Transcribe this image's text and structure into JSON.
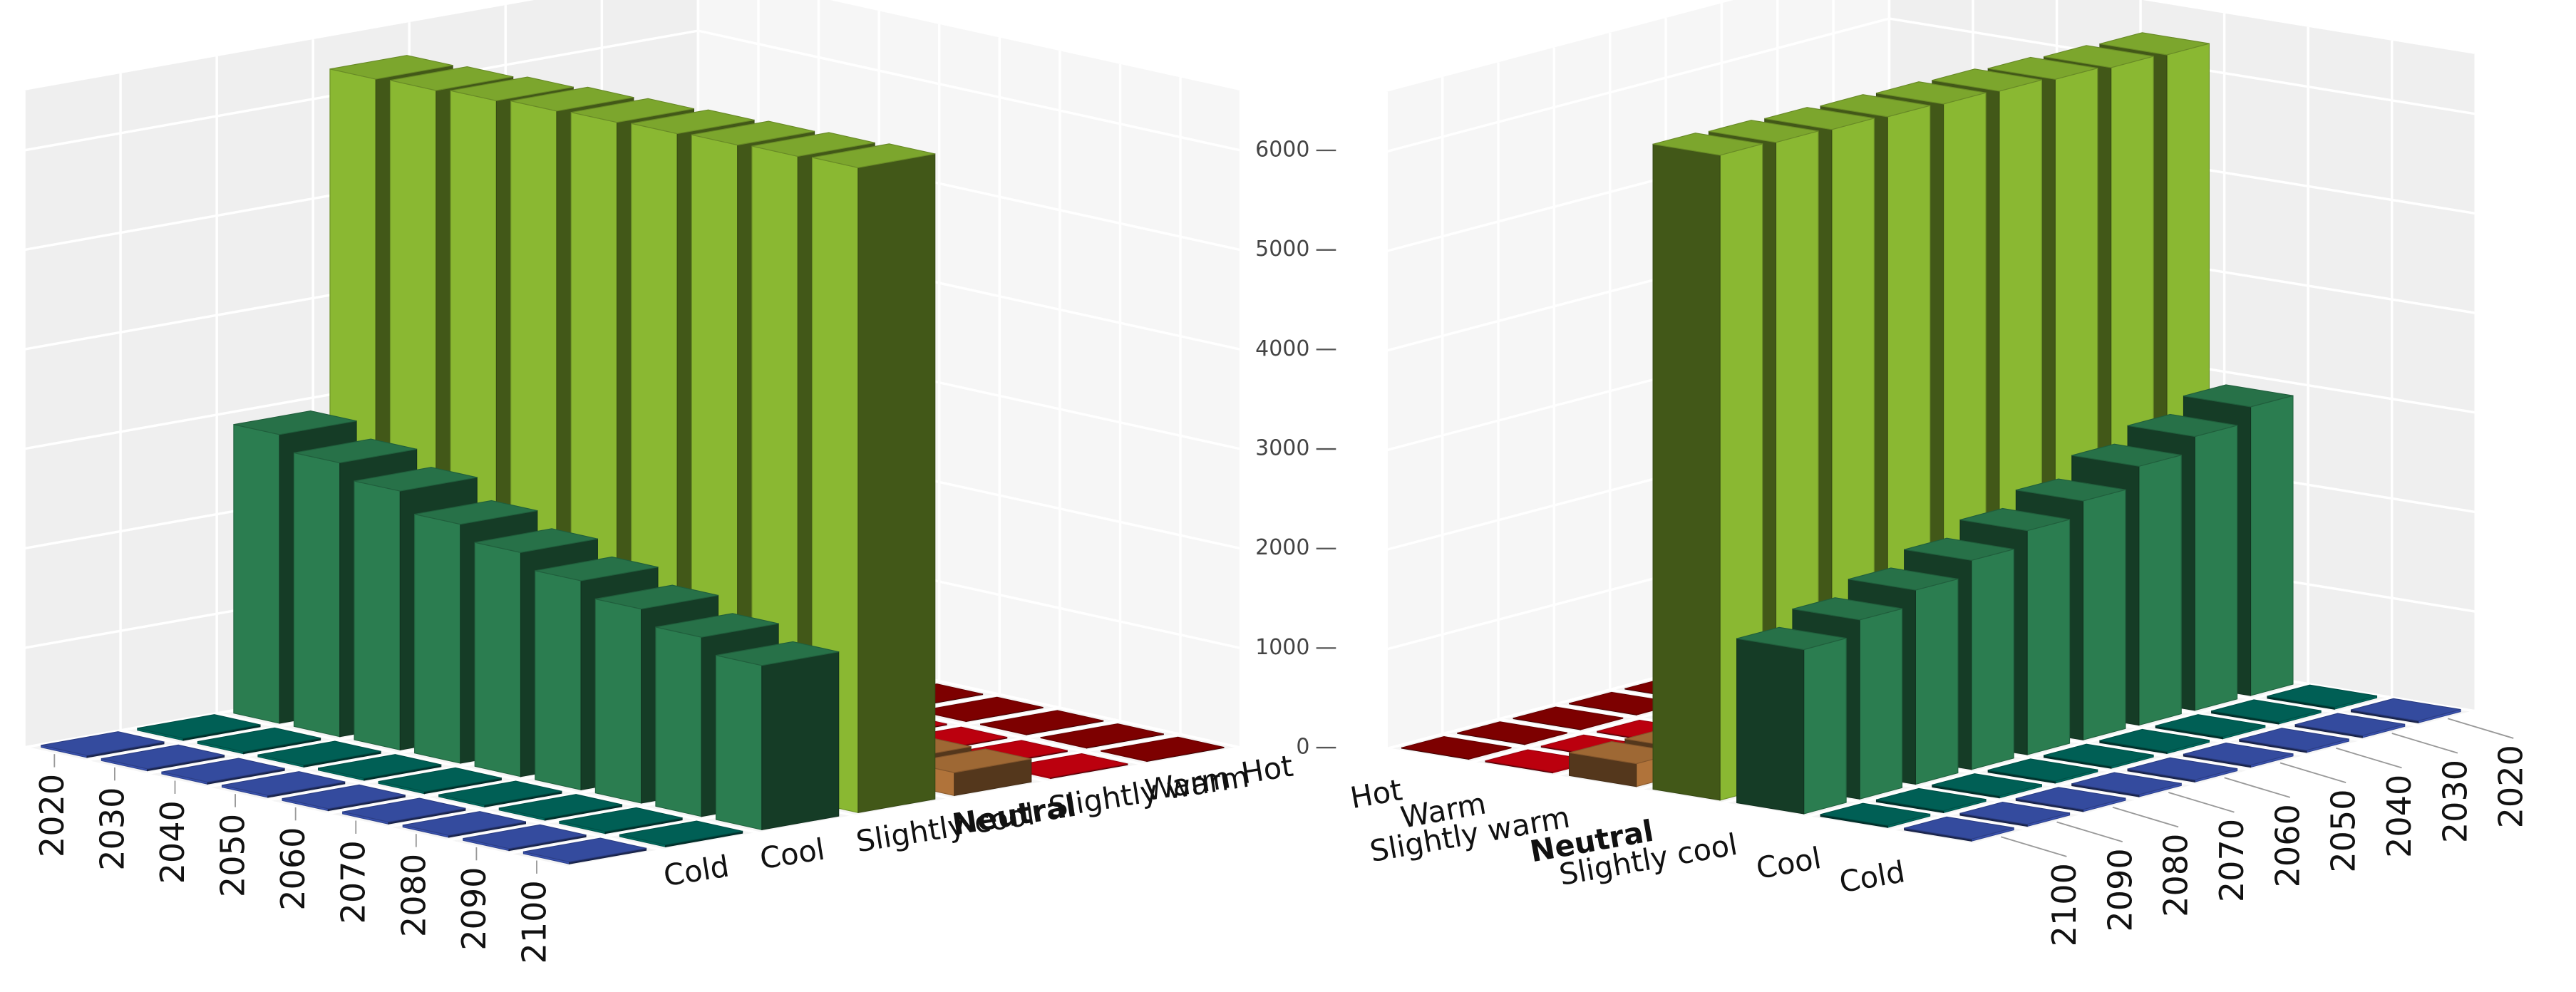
{
  "chart_data": {
    "type": "bar3d",
    "x": [
      2020,
      2030,
      2040,
      2050,
      2060,
      2070,
      2080,
      2090,
      2100
    ],
    "categories": [
      "Cold",
      "Cool",
      "Slightly cool",
      "Neutral",
      "Slightly warm",
      "Warm",
      "Hot"
    ],
    "colors": [
      "#3a53b0",
      "#006a5e",
      "#2b7d50",
      "#8ab832",
      "#b0733a",
      "#d00010",
      "#8b0000"
    ],
    "values": [
      [
        20,
        20,
        20,
        20,
        20,
        20,
        20,
        20,
        20
      ],
      [
        20,
        20,
        20,
        20,
        20,
        20,
        20,
        20,
        20
      ],
      [
        2900,
        2750,
        2600,
        2400,
        2250,
        2100,
        1950,
        1800,
        1650
      ],
      [
        6300,
        6320,
        6350,
        6380,
        6400,
        6420,
        6440,
        6460,
        6480
      ],
      [
        150,
        160,
        170,
        180,
        190,
        200,
        210,
        220,
        230
      ],
      [
        10,
        10,
        10,
        10,
        10,
        10,
        10,
        10,
        10
      ],
      [
        5,
        5,
        5,
        5,
        5,
        5,
        5,
        5,
        5
      ]
    ],
    "zlim": [
      0,
      6600
    ],
    "zticks": [
      0,
      1000,
      2000,
      3000,
      4000,
      5000,
      6000
    ],
    "emphasized_category_index": 3
  }
}
